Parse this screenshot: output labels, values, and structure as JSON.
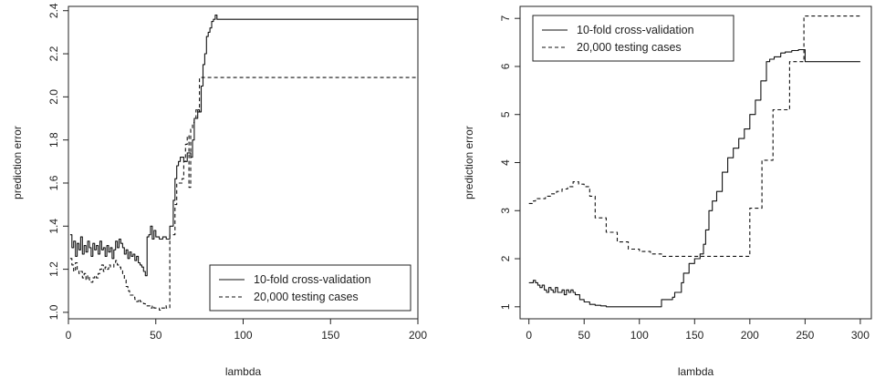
{
  "chart_data": [
    {
      "type": "line",
      "xlabel": "lambda",
      "ylabel": "prediction error",
      "xlim": [
        0,
        200
      ],
      "ylim": [
        0.97,
        2.42
      ],
      "xticks": [
        0,
        50,
        100,
        150,
        200
      ],
      "yticks": [
        1.0,
        1.2,
        1.4,
        1.6,
        1.8,
        2.0,
        2.2,
        2.4
      ],
      "ytick_decimals": 1,
      "grid": false,
      "legend": "bottom-right",
      "series": [
        {
          "name": "10-fold cross-validation",
          "style": "solid",
          "x": [
            1,
            2,
            3,
            4,
            5,
            6,
            7,
            8,
            9,
            10,
            11,
            12,
            13,
            14,
            15,
            16,
            17,
            18,
            19,
            20,
            21,
            22,
            23,
            24,
            25,
            26,
            27,
            28,
            29,
            30,
            31,
            32,
            33,
            34,
            35,
            36,
            37,
            38,
            39,
            40,
            41,
            42,
            43,
            44,
            45,
            46,
            47,
            48,
            49,
            50,
            52,
            54,
            56,
            58,
            60,
            61,
            62,
            63,
            64,
            66,
            68,
            70,
            71,
            72,
            74,
            75,
            76,
            77,
            78,
            79,
            80,
            81,
            82,
            83,
            84,
            85,
            86,
            200
          ],
          "y": [
            1.36,
            1.3,
            1.33,
            1.26,
            1.32,
            1.29,
            1.35,
            1.27,
            1.31,
            1.28,
            1.33,
            1.3,
            1.26,
            1.32,
            1.29,
            1.31,
            1.27,
            1.33,
            1.29,
            1.3,
            1.26,
            1.31,
            1.28,
            1.3,
            1.25,
            1.29,
            1.33,
            1.3,
            1.34,
            1.32,
            1.3,
            1.27,
            1.29,
            1.25,
            1.28,
            1.26,
            1.27,
            1.24,
            1.26,
            1.23,
            1.22,
            1.21,
            1.19,
            1.17,
            1.35,
            1.36,
            1.4,
            1.34,
            1.38,
            1.35,
            1.34,
            1.35,
            1.34,
            1.4,
            1.52,
            1.62,
            1.68,
            1.7,
            1.72,
            1.7,
            1.74,
            1.72,
            1.8,
            1.9,
            1.94,
            1.93,
            2.05,
            2.15,
            2.2,
            2.28,
            2.3,
            2.32,
            2.35,
            2.36,
            2.38,
            2.36,
            2.36,
            2.36
          ]
        },
        {
          "name": "20,000 testing cases",
          "style": "dashed",
          "x": [
            1,
            2,
            3,
            4,
            5,
            6,
            7,
            8,
            9,
            10,
            11,
            12,
            13,
            14,
            15,
            16,
            17,
            18,
            19,
            20,
            21,
            22,
            23,
            24,
            25,
            26,
            27,
            28,
            29,
            30,
            31,
            32,
            33,
            34,
            35,
            36,
            37,
            38,
            39,
            40,
            41,
            42,
            43,
            44,
            45,
            46,
            47,
            48,
            49,
            50,
            51,
            52,
            53,
            54,
            55,
            56,
            57,
            58,
            59,
            60,
            61,
            62,
            63,
            64,
            65,
            66,
            67,
            68,
            69,
            70,
            71,
            72,
            73,
            74,
            75,
            76,
            200
          ],
          "y": [
            1.25,
            1.22,
            1.19,
            1.23,
            1.2,
            1.18,
            1.19,
            1.16,
            1.18,
            1.15,
            1.17,
            1.15,
            1.14,
            1.16,
            1.17,
            1.16,
            1.18,
            1.2,
            1.22,
            1.19,
            1.21,
            1.2,
            1.22,
            1.21,
            1.21,
            1.23,
            1.24,
            1.22,
            1.21,
            1.2,
            1.18,
            1.15,
            1.12,
            1.1,
            1.08,
            1.08,
            1.07,
            1.06,
            1.05,
            1.06,
            1.05,
            1.05,
            1.04,
            1.03,
            1.03,
            1.03,
            1.02,
            1.03,
            1.02,
            1.02,
            1.02,
            1.01,
            1.02,
            1.02,
            1.03,
            1.02,
            1.02,
            1.36,
            1.36,
            1.36,
            1.5,
            1.6,
            1.6,
            1.6,
            1.62,
            1.7,
            1.78,
            1.82,
            1.58,
            1.85,
            1.88,
            1.9,
            1.94,
            1.93,
            2.09,
            2.09,
            2.09
          ]
        }
      ]
    },
    {
      "type": "line",
      "xlabel": "lambda",
      "ylabel": "prediction error",
      "xlim": [
        -8,
        310
      ],
      "ylim": [
        0.75,
        7.25
      ],
      "xticks": [
        0,
        50,
        100,
        150,
        200,
        250,
        300
      ],
      "yticks": [
        1,
        2,
        3,
        4,
        5,
        6,
        7
      ],
      "ytick_decimals": 0,
      "grid": false,
      "legend": "top-left",
      "series": [
        {
          "name": "10-fold cross-validation",
          "style": "solid",
          "x": [
            0,
            2,
            4,
            6,
            8,
            10,
            12,
            14,
            16,
            18,
            20,
            22,
            24,
            26,
            28,
            30,
            32,
            34,
            36,
            38,
            40,
            42,
            44,
            46,
            50,
            55,
            60,
            65,
            70,
            75,
            80,
            90,
            100,
            110,
            118,
            120,
            130,
            132,
            138,
            140,
            145,
            150,
            155,
            158,
            160,
            163,
            166,
            170,
            175,
            180,
            185,
            190,
            195,
            200,
            205,
            210,
            215,
            218,
            222,
            228,
            232,
            238,
            244,
            248,
            250,
            300
          ],
          "y": [
            1.5,
            1.5,
            1.55,
            1.5,
            1.45,
            1.4,
            1.45,
            1.35,
            1.3,
            1.4,
            1.35,
            1.3,
            1.4,
            1.3,
            1.3,
            1.35,
            1.25,
            1.35,
            1.3,
            1.35,
            1.3,
            1.25,
            1.25,
            1.15,
            1.1,
            1.05,
            1.03,
            1.02,
            1.0,
            1.0,
            1.0,
            1.0,
            1.0,
            1.0,
            1.0,
            1.15,
            1.2,
            1.3,
            1.5,
            1.7,
            1.9,
            2.0,
            2.1,
            2.3,
            2.6,
            3.0,
            3.2,
            3.4,
            3.8,
            4.1,
            4.3,
            4.5,
            4.7,
            5.0,
            5.3,
            5.7,
            6.1,
            6.15,
            6.2,
            6.28,
            6.3,
            6.33,
            6.35,
            6.35,
            6.1,
            6.1
          ]
        },
        {
          "name": "20,000 testing cases",
          "style": "dashed",
          "x": [
            0,
            3,
            6,
            10,
            15,
            20,
            25,
            30,
            35,
            40,
            45,
            50,
            55,
            60,
            70,
            80,
            90,
            100,
            110,
            120,
            150,
            160,
            180,
            199,
            200,
            210,
            211,
            220,
            221,
            235,
            236,
            248,
            249,
            300
          ],
          "y": [
            3.15,
            3.2,
            3.25,
            3.25,
            3.3,
            3.35,
            3.4,
            3.45,
            3.5,
            3.6,
            3.55,
            3.5,
            3.3,
            2.85,
            2.55,
            2.35,
            2.2,
            2.15,
            2.1,
            2.05,
            2.05,
            2.05,
            2.05,
            2.05,
            3.05,
            3.05,
            4.05,
            4.05,
            5.1,
            5.1,
            6.1,
            6.1,
            7.05,
            7.05
          ]
        }
      ]
    }
  ]
}
